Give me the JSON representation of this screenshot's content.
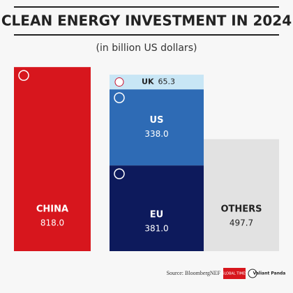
{
  "chart_data": {
    "type": "stacked-bar",
    "title": "CLEAN ENERGY INVESTMENT IN 2024",
    "subtitle": "(in billion US dollars)",
    "source": "Source: BloombergNEF",
    "logos": [
      "GLOBAL TIMES",
      "Valiant Panda"
    ],
    "bars": [
      {
        "segments": [
          {
            "name": "CHINA",
            "value": 818,
            "value_label": "818.0",
            "color": "#d7161d"
          }
        ]
      },
      {
        "segments": [
          {
            "name": "EU",
            "value": 381,
            "value_label": "381.0",
            "color": "#0d1a5c"
          },
          {
            "name": "US",
            "value": 338,
            "value_label": "338.0",
            "color": "#2e6bb5"
          },
          {
            "name": "UK",
            "value": 65.3,
            "value_label": "65.3",
            "color": "#c8e6f5"
          }
        ]
      },
      {
        "segments": [
          {
            "name": "OTHERS",
            "value": 497.7,
            "value_label": "497.7",
            "color": "#e2e2e2"
          }
        ]
      }
    ]
  }
}
